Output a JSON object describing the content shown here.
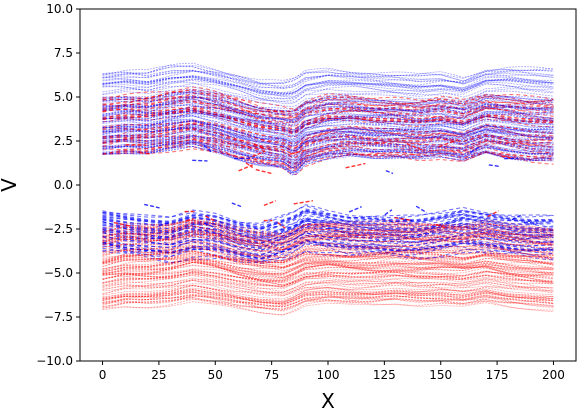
{
  "chart_data": {
    "type": "scatter",
    "title": "",
    "xlabel": "X",
    "ylabel": "V",
    "xlim": [
      -10,
      210
    ],
    "ylim": [
      -10,
      10
    ],
    "grid": false,
    "legend": "none",
    "x_ticks": [
      0,
      25,
      50,
      75,
      100,
      125,
      150,
      175,
      200
    ],
    "x_tick_labels": [
      "0",
      "25",
      "50",
      "75",
      "100",
      "125",
      "150",
      "175",
      "200"
    ],
    "y_ticks": [
      -10,
      -7.5,
      -5,
      -2.5,
      0,
      2.5,
      5,
      7.5,
      10
    ],
    "y_tick_labels": [
      "−10.0",
      "−7.5",
      "−5.0",
      "−2.5",
      "0.0",
      "2.5",
      "5.0",
      "7.5",
      "10.0"
    ],
    "series": [
      {
        "color": "#0000ff",
        "band": "dense trajectories, mostly positive V",
        "x": [
          0,
          10,
          20,
          30,
          40,
          50,
          60,
          70,
          80,
          85,
          90,
          100,
          110,
          120,
          130,
          140,
          150,
          160,
          170,
          180,
          190,
          200
        ],
        "v_upper": [
          6.7,
          6.8,
          6.7,
          7.0,
          7.1,
          6.9,
          6.6,
          6.2,
          6.1,
          6.3,
          6.7,
          6.9,
          6.8,
          6.7,
          6.6,
          6.5,
          6.6,
          6.4,
          6.9,
          7.0,
          6.9,
          6.8
        ],
        "v_center": [
          4.3,
          4.3,
          4.2,
          4.4,
          4.6,
          4.4,
          4.0,
          3.6,
          3.3,
          3.1,
          3.9,
          4.3,
          4.3,
          4.2,
          4.2,
          4.1,
          4.2,
          4.0,
          4.4,
          4.4,
          4.3,
          4.3
        ],
        "v_lower": [
          1.8,
          1.9,
          1.8,
          2.0,
          2.2,
          1.9,
          1.5,
          1.2,
          1.0,
          0.5,
          1.2,
          1.5,
          1.7,
          1.6,
          1.6,
          1.5,
          1.6,
          1.4,
          1.9,
          1.6,
          1.4,
          1.4
        ],
        "v_negative_upper": [
          -1.4,
          -1.6,
          -1.8,
          -1.9,
          -1.5,
          -1.6,
          -2.0,
          -2.2,
          -1.8,
          -1.6,
          -1.2,
          -1.5,
          -1.7,
          -1.7,
          -1.8,
          -1.8,
          -1.6,
          -1.3,
          -1.5,
          -1.7,
          -1.8,
          -1.8
        ],
        "v_negative_lower": [
          -3.8,
          -4.0,
          -4.1,
          -4.3,
          -4.0,
          -4.1,
          -4.4,
          -4.6,
          -4.2,
          -4.0,
          -3.6,
          -3.8,
          -4.0,
          -4.0,
          -4.1,
          -4.1,
          -3.9,
          -3.7,
          -3.9,
          -4.0,
          -4.1,
          -4.1
        ]
      },
      {
        "color": "#ff0000",
        "band": "dense trajectories, mostly negative V",
        "x": [
          0,
          10,
          20,
          30,
          40,
          50,
          60,
          70,
          80,
          85,
          90,
          100,
          110,
          120,
          130,
          140,
          150,
          160,
          170,
          180,
          190,
          200
        ],
        "v_lower": [
          -7.2,
          -7.0,
          -7.0,
          -6.9,
          -6.7,
          -6.9,
          -7.1,
          -7.3,
          -7.4,
          -7.2,
          -6.9,
          -6.8,
          -6.9,
          -6.9,
          -6.8,
          -6.9,
          -6.9,
          -7.0,
          -6.8,
          -7.0,
          -7.1,
          -7.2
        ],
        "v_center": [
          -4.8,
          -4.6,
          -4.6,
          -4.5,
          -4.3,
          -4.5,
          -4.8,
          -5.0,
          -5.1,
          -4.9,
          -4.6,
          -4.5,
          -4.6,
          -4.6,
          -4.5,
          -4.6,
          -4.6,
          -4.7,
          -4.5,
          -4.7,
          -4.8,
          -4.9
        ],
        "v_upper": [
          -2.5,
          -2.2,
          -2.2,
          -2.1,
          -1.8,
          -2.0,
          -2.4,
          -2.6,
          -2.7,
          -2.4,
          -2.1,
          -2.0,
          -2.1,
          -2.1,
          -2.0,
          -2.1,
          -2.1,
          -2.2,
          -2.0,
          -2.2,
          -2.3,
          -2.4
        ],
        "v_positive_upper": [
          5.0,
          5.2,
          5.3,
          5.4,
          5.5,
          5.3,
          5.0,
          4.7,
          4.5,
          4.4,
          4.8,
          5.1,
          5.1,
          5.0,
          5.0,
          4.9,
          5.0,
          4.8,
          5.2,
          5.2,
          5.1,
          5.0
        ],
        "v_positive_lower": [
          1.5,
          1.6,
          1.6,
          1.8,
          2.0,
          1.7,
          1.3,
          1.0,
          0.8,
          0.4,
          1.0,
          1.4,
          1.5,
          1.4,
          1.4,
          1.3,
          1.4,
          1.2,
          1.6,
          1.3,
          1.1,
          1.1
        ]
      }
    ]
  }
}
